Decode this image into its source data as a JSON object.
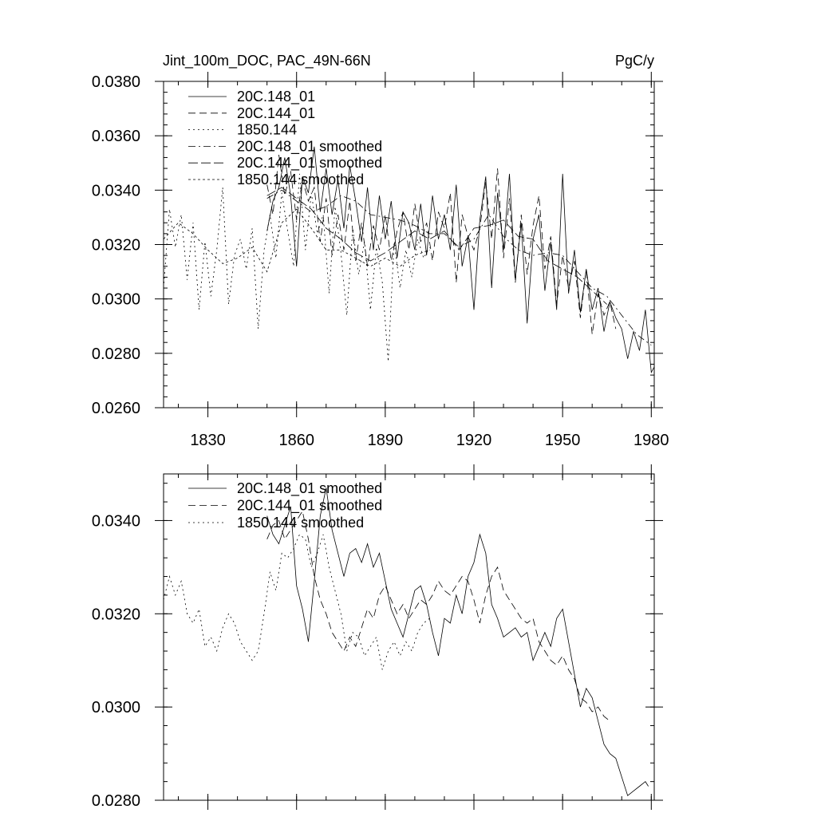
{
  "chart_data": [
    {
      "type": "line",
      "title_left": "Jint_100m_DOC, PAC_49N-66N",
      "title_right": "PgC/y",
      "xlabel": "",
      "ylabel": "",
      "xlim": [
        1815,
        1981
      ],
      "ylim": [
        0.026,
        0.038
      ],
      "xticks": [
        1830,
        1860,
        1890,
        1920,
        1950,
        1980
      ],
      "yticks": [
        0.026,
        0.028,
        0.03,
        0.032,
        0.034,
        0.036,
        0.038
      ],
      "ytick_labels": [
        "0.0260",
        "0.0280",
        "0.0300",
        "0.0320",
        "0.0340",
        "0.0360",
        "0.0380"
      ],
      "legend": [
        "20C.148_01",
        "20C.144_01",
        "1850.144",
        "20C.148_01 smoothed",
        "20C.144_01 smoothed",
        "1850.144 smoothed"
      ],
      "legend_position": "top-left",
      "series": [
        {
          "name": "20C.148_01",
          "style": "solid",
          "x": [
            1850,
            1852,
            1854,
            1856,
            1858,
            1860,
            1862,
            1864,
            1866,
            1868,
            1870,
            1872,
            1874,
            1876,
            1878,
            1880,
            1882,
            1884,
            1886,
            1888,
            1890,
            1892,
            1894,
            1896,
            1898,
            1900,
            1902,
            1904,
            1906,
            1908,
            1910,
            1912,
            1914,
            1916,
            1918,
            1920,
            1922,
            1924,
            1926,
            1928,
            1930,
            1932,
            1934,
            1936,
            1938,
            1940,
            1942,
            1944,
            1946,
            1948,
            1950,
            1952,
            1954,
            1956,
            1958,
            1960,
            1962,
            1964,
            1966,
            1968,
            1970,
            1972,
            1974,
            1976,
            1978,
            1980,
            1981
          ],
          "values": [
            0.0325,
            0.0336,
            0.0341,
            0.0352,
            0.0338,
            0.0312,
            0.0345,
            0.0339,
            0.0356,
            0.0332,
            0.0348,
            0.0331,
            0.0344,
            0.0326,
            0.0349,
            0.0336,
            0.0321,
            0.0341,
            0.0318,
            0.0338,
            0.0322,
            0.0336,
            0.0315,
            0.0332,
            0.0328,
            0.0318,
            0.0335,
            0.0316,
            0.0338,
            0.0322,
            0.0331,
            0.0318,
            0.0342,
            0.0312,
            0.0323,
            0.0296,
            0.0329,
            0.0345,
            0.0304,
            0.0339,
            0.0318,
            0.0346,
            0.0307,
            0.0328,
            0.0291,
            0.0322,
            0.0331,
            0.0303,
            0.0321,
            0.0296,
            0.0346,
            0.0302,
            0.0318,
            0.0295,
            0.0311,
            0.0296,
            0.0304,
            0.0288,
            0.0299,
            0.0293,
            0.0289,
            0.0278,
            0.0288,
            0.0281,
            0.0296,
            0.0273,
            0.0275
          ]
        },
        {
          "name": "20C.144_01",
          "style": "dash",
          "x": [
            1850,
            1852,
            1854,
            1856,
            1858,
            1860,
            1862,
            1864,
            1866,
            1868,
            1870,
            1872,
            1874,
            1876,
            1878,
            1880,
            1882,
            1884,
            1886,
            1888,
            1890,
            1892,
            1894,
            1896,
            1898,
            1900,
            1902,
            1904,
            1906,
            1908,
            1910,
            1912,
            1914,
            1916,
            1918,
            1920,
            1922,
            1924,
            1926,
            1928,
            1930,
            1932,
            1934,
            1936,
            1938,
            1940,
            1942,
            1944,
            1946,
            1948,
            1950,
            1952,
            1954,
            1956,
            1958,
            1960,
            1962,
            1964,
            1966,
            1968
          ],
          "values": [
            0.0342,
            0.0331,
            0.0353,
            0.0338,
            0.0347,
            0.0329,
            0.0344,
            0.0336,
            0.0341,
            0.0321,
            0.0337,
            0.0316,
            0.0331,
            0.0318,
            0.0336,
            0.0314,
            0.0328,
            0.0312,
            0.0327,
            0.0318,
            0.0331,
            0.0314,
            0.0325,
            0.0332,
            0.0318,
            0.0335,
            0.0321,
            0.0328,
            0.0314,
            0.0332,
            0.0326,
            0.0339,
            0.0306,
            0.0331,
            0.0323,
            0.0318,
            0.0326,
            0.0343,
            0.0322,
            0.0348,
            0.0315,
            0.0337,
            0.0306,
            0.0331,
            0.0309,
            0.0327,
            0.0338,
            0.0311,
            0.0323,
            0.0298,
            0.0316,
            0.0304,
            0.0314,
            0.0293,
            0.0311,
            0.0287,
            0.0302,
            0.0294,
            0.0299,
            0.0289
          ]
        },
        {
          "name": "1850.144",
          "style": "dot",
          "x": [
            1815,
            1817,
            1819,
            1821,
            1823,
            1825,
            1827,
            1829,
            1831,
            1833,
            1835,
            1837,
            1839,
            1841,
            1843,
            1845,
            1847,
            1849,
            1851,
            1853,
            1855,
            1857,
            1859,
            1861,
            1863,
            1865,
            1867,
            1869,
            1871,
            1873,
            1875,
            1877,
            1879,
            1881,
            1883,
            1885,
            1887,
            1889,
            1891,
            1893,
            1895,
            1897,
            1899,
            1901,
            1903,
            1905
          ],
          "values": [
            0.0304,
            0.0333,
            0.0319,
            0.0331,
            0.0307,
            0.0328,
            0.0296,
            0.0321,
            0.0301,
            0.0318,
            0.0341,
            0.0298,
            0.0316,
            0.0322,
            0.0311,
            0.0326,
            0.0289,
            0.0318,
            0.0331,
            0.0315,
            0.0339,
            0.0325,
            0.0312,
            0.0346,
            0.0318,
            0.0339,
            0.0324,
            0.0331,
            0.0302,
            0.0334,
            0.0317,
            0.0294,
            0.0326,
            0.0309,
            0.0321,
            0.0296,
            0.0319,
            0.0306,
            0.0277,
            0.0321,
            0.0304,
            0.0318,
            0.0308,
            0.0322,
            0.0315,
            0.0319
          ]
        },
        {
          "name": "20C.148_01 smoothed",
          "style": "dashdot",
          "x": [
            1850,
            1855,
            1860,
            1865,
            1870,
            1875,
            1880,
            1885,
            1890,
            1895,
            1900,
            1905,
            1910,
            1915,
            1920,
            1925,
            1930,
            1935,
            1940,
            1945,
            1950,
            1955,
            1960,
            1965,
            1970,
            1975,
            1980
          ],
          "values": [
            0.0337,
            0.034,
            0.0336,
            0.0332,
            0.0334,
            0.0338,
            0.0336,
            0.0331,
            0.033,
            0.0329,
            0.0327,
            0.0324,
            0.0324,
            0.0319,
            0.0322,
            0.0331,
            0.0323,
            0.0318,
            0.0316,
            0.0317,
            0.0316,
            0.031,
            0.0304,
            0.0301,
            0.0294,
            0.0287,
            0.0283
          ]
        },
        {
          "name": "20C.144_01 smoothed",
          "style": "longdash",
          "x": [
            1850,
            1855,
            1860,
            1865,
            1870,
            1875,
            1880,
            1885,
            1890,
            1895,
            1900,
            1905,
            1910,
            1915,
            1920,
            1925,
            1930,
            1935,
            1940,
            1945,
            1950,
            1955,
            1960,
            1965
          ],
          "values": [
            0.0338,
            0.0341,
            0.0337,
            0.0333,
            0.0326,
            0.0322,
            0.0317,
            0.0314,
            0.0317,
            0.0321,
            0.0325,
            0.0322,
            0.0325,
            0.0318,
            0.0326,
            0.0327,
            0.0329,
            0.0323,
            0.0322,
            0.0314,
            0.0311,
            0.0308,
            0.0303,
            0.0298
          ]
        },
        {
          "name": "1850.144 smoothed",
          "style": "shortdot",
          "x": [
            1815,
            1820,
            1825,
            1830,
            1835,
            1840,
            1845,
            1850,
            1855,
            1860,
            1865,
            1870,
            1875,
            1880,
            1885,
            1890,
            1895,
            1900,
            1905
          ],
          "values": [
            0.0322,
            0.0328,
            0.0324,
            0.0318,
            0.0313,
            0.0315,
            0.0319,
            0.031,
            0.0328,
            0.0333,
            0.0326,
            0.0318,
            0.0318,
            0.0315,
            0.0312,
            0.0315,
            0.0312,
            0.0316,
            0.0318
          ]
        }
      ]
    },
    {
      "type": "line",
      "title_left": "",
      "title_right": "",
      "xlabel": "",
      "ylabel": "",
      "xlim": [
        1815,
        1981
      ],
      "ylim": [
        0.028,
        0.035
      ],
      "xticks": [
        1830,
        1860,
        1890,
        1920,
        1950,
        1980
      ],
      "yticks": [
        0.028,
        0.03,
        0.032,
        0.034
      ],
      "ytick_labels": [
        "0.0280",
        "0.0300",
        "0.0320",
        "0.0340"
      ],
      "legend": [
        "20C.148_01 smoothed",
        "20C.144_01 smoothed",
        "1850.144 smoothed"
      ],
      "legend_position": "top-left",
      "series": [
        {
          "name": "20C.148_01 smoothed",
          "style": "solid",
          "x": [
            1850,
            1852,
            1854,
            1856,
            1858,
            1860,
            1862,
            1864,
            1866,
            1868,
            1870,
            1872,
            1874,
            1876,
            1878,
            1880,
            1882,
            1884,
            1886,
            1888,
            1890,
            1892,
            1894,
            1896,
            1898,
            1900,
            1902,
            1904,
            1906,
            1908,
            1910,
            1912,
            1914,
            1916,
            1918,
            1920,
            1922,
            1924,
            1926,
            1928,
            1930,
            1932,
            1934,
            1936,
            1938,
            1940,
            1942,
            1944,
            1946,
            1948,
            1950,
            1952,
            1954,
            1956,
            1958,
            1960,
            1962,
            1964,
            1966,
            1968,
            1970,
            1972,
            1974,
            1976,
            1978,
            1979
          ],
          "values": [
            0.0341,
            0.0337,
            0.0335,
            0.0339,
            0.0343,
            0.0326,
            0.0321,
            0.0314,
            0.0327,
            0.0341,
            0.0347,
            0.0338,
            0.0333,
            0.0328,
            0.0333,
            0.0334,
            0.0331,
            0.0335,
            0.033,
            0.0333,
            0.0327,
            0.0321,
            0.0318,
            0.0315,
            0.032,
            0.0325,
            0.0326,
            0.0322,
            0.0316,
            0.0311,
            0.0319,
            0.0318,
            0.0324,
            0.032,
            0.0328,
            0.0331,
            0.0337,
            0.0333,
            0.0322,
            0.0319,
            0.0315,
            0.0316,
            0.0317,
            0.0315,
            0.0316,
            0.031,
            0.0313,
            0.0316,
            0.0313,
            0.0319,
            0.0321,
            0.0314,
            0.0307,
            0.03,
            0.0304,
            0.0302,
            0.0297,
            0.0292,
            0.029,
            0.0289,
            0.0285,
            0.0281,
            0.0282,
            0.0283,
            0.0284,
            0.0283
          ]
        },
        {
          "name": "20C.144_01 smoothed",
          "style": "dash",
          "x": [
            1850,
            1852,
            1854,
            1856,
            1858,
            1860,
            1862,
            1864,
            1866,
            1868,
            1870,
            1872,
            1874,
            1876,
            1878,
            1880,
            1882,
            1884,
            1886,
            1888,
            1890,
            1892,
            1894,
            1896,
            1898,
            1900,
            1902,
            1904,
            1906,
            1908,
            1910,
            1912,
            1914,
            1916,
            1918,
            1920,
            1922,
            1924,
            1926,
            1928,
            1930,
            1932,
            1934,
            1936,
            1938,
            1940,
            1942,
            1944,
            1946,
            1948,
            1950,
            1952,
            1954,
            1956,
            1958,
            1960,
            1962,
            1964,
            1966
          ],
          "values": [
            0.0336,
            0.0339,
            0.034,
            0.0336,
            0.0338,
            0.034,
            0.0342,
            0.0336,
            0.0328,
            0.0323,
            0.032,
            0.0316,
            0.0314,
            0.0312,
            0.0315,
            0.0313,
            0.0317,
            0.0321,
            0.0319,
            0.0324,
            0.0326,
            0.0323,
            0.032,
            0.0322,
            0.0319,
            0.0321,
            0.0323,
            0.0322,
            0.0324,
            0.0327,
            0.0325,
            0.0324,
            0.0326,
            0.0328,
            0.0327,
            0.0323,
            0.0318,
            0.0324,
            0.0328,
            0.033,
            0.0325,
            0.0323,
            0.0321,
            0.0319,
            0.0318,
            0.0319,
            0.0314,
            0.0312,
            0.031,
            0.0309,
            0.0311,
            0.0308,
            0.0306,
            0.0302,
            0.0301,
            0.0299,
            0.03,
            0.0298,
            0.0297
          ]
        },
        {
          "name": "1850.144 smoothed",
          "style": "dot",
          "x": [
            1815,
            1817,
            1819,
            1821,
            1823,
            1825,
            1827,
            1829,
            1831,
            1833,
            1835,
            1837,
            1839,
            1841,
            1843,
            1845,
            1847,
            1849,
            1851,
            1853,
            1855,
            1857,
            1859,
            1861,
            1863,
            1865,
            1867,
            1869,
            1871,
            1873,
            1875,
            1877,
            1879,
            1881,
            1883,
            1885,
            1887,
            1889,
            1891,
            1893,
            1895,
            1897,
            1899,
            1901,
            1903,
            1905
          ],
          "values": [
            0.0323,
            0.0328,
            0.0324,
            0.0327,
            0.032,
            0.0318,
            0.0321,
            0.0313,
            0.0315,
            0.0312,
            0.0317,
            0.032,
            0.0318,
            0.0314,
            0.0312,
            0.031,
            0.0312,
            0.032,
            0.0329,
            0.0325,
            0.0333,
            0.0332,
            0.0334,
            0.0337,
            0.0336,
            0.033,
            0.0333,
            0.0337,
            0.033,
            0.0325,
            0.032,
            0.0312,
            0.0316,
            0.0315,
            0.0311,
            0.0313,
            0.0315,
            0.0308,
            0.0312,
            0.0314,
            0.0311,
            0.0314,
            0.0312,
            0.0316,
            0.0318,
            0.0319
          ]
        }
      ]
    }
  ]
}
